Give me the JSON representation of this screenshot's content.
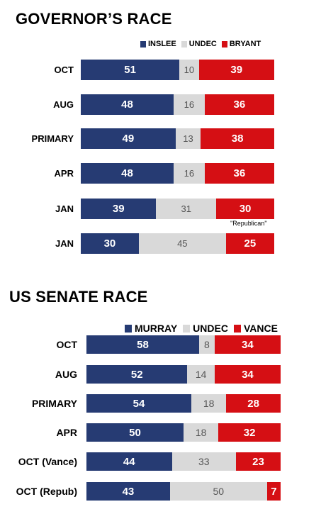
{
  "colors": {
    "blue": "#263b73",
    "gray": "#d9d9d9",
    "red": "#d50f14"
  },
  "chart_data": [
    {
      "type": "bar",
      "stacked": true,
      "orientation": "horizontal",
      "title": "GOVERNOR’S RACE",
      "legend": [
        "INSLEE",
        "UNDEC",
        "BRYANT"
      ],
      "legend_position": "top-right",
      "categories": [
        "OCT",
        "AUG",
        "PRIMARY",
        "APR",
        "JAN",
        "JAN"
      ],
      "series": [
        {
          "name": "INSLEE",
          "values": [
            51,
            48,
            49,
            48,
            39,
            30
          ]
        },
        {
          "name": "UNDEC",
          "values": [
            10,
            16,
            13,
            16,
            31,
            45
          ]
        },
        {
          "name": "BRYANT",
          "values": [
            39,
            36,
            38,
            36,
            30,
            25
          ]
        }
      ],
      "annotations": [
        {
          "row": 4,
          "text": "\"Republican\""
        }
      ],
      "xlim": [
        0,
        100
      ],
      "grid": false
    },
    {
      "type": "bar",
      "stacked": true,
      "orientation": "horizontal",
      "title": "US SENATE RACE",
      "legend": [
        "MURRAY",
        "UNDEC",
        "VANCE"
      ],
      "legend_position": "top-right",
      "categories": [
        "OCT",
        "AUG",
        "PRIMARY",
        "APR",
        "OCT (Vance)",
        "OCT (Repub)"
      ],
      "series": [
        {
          "name": "MURRAY",
          "values": [
            58,
            52,
            54,
            50,
            44,
            43
          ]
        },
        {
          "name": "UNDEC",
          "values": [
            8,
            14,
            18,
            18,
            33,
            50
          ]
        },
        {
          "name": "VANCE",
          "values": [
            34,
            34,
            28,
            32,
            23,
            7
          ]
        }
      ],
      "annotations": [],
      "xlim": [
        0,
        100
      ],
      "grid": false
    }
  ]
}
